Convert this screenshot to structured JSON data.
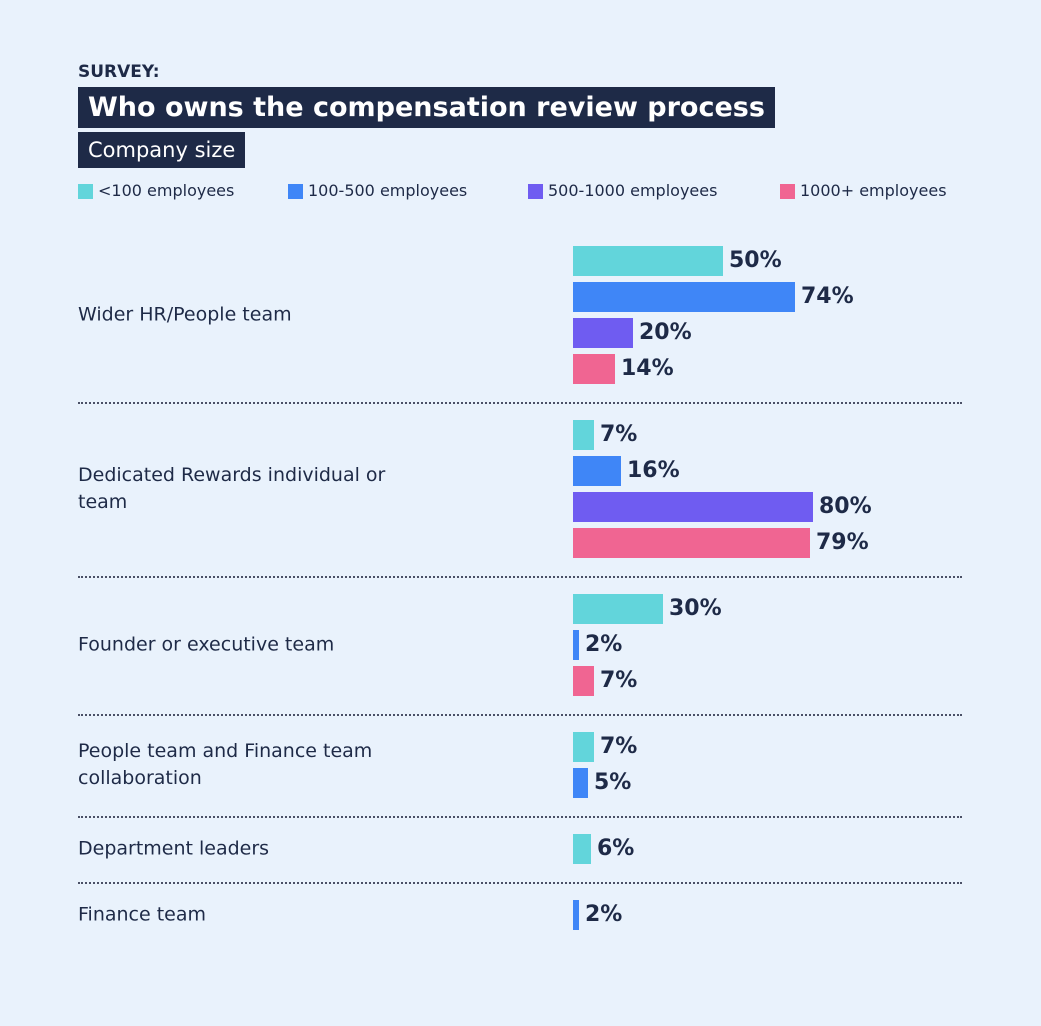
{
  "chart_data": {
    "type": "grouped-hbar",
    "kicker": "SURVEY:",
    "title": "Who owns the compensation review process",
    "subtitle": "Company size",
    "categories": [
      "Wider HR/People team",
      "Dedicated Rewards individual or team",
      "Founder or executive team",
      "People team and Finance team collaboration",
      "Department leaders",
      "Finance team"
    ],
    "series": [
      {
        "name": "<100 employees",
        "color": "#62d5db",
        "values": [
          50,
          7,
          30,
          7,
          6,
          null
        ],
        "value_labels": [
          "50%",
          "7%",
          "30%",
          "7%",
          "6%",
          null
        ]
      },
      {
        "name": "100-500 employees",
        "color": "#3f86f7",
        "values": [
          74,
          16,
          2,
          5,
          null,
          2
        ],
        "value_labels": [
          "74%",
          "16%",
          "2%",
          "5%",
          null,
          "2%"
        ]
      },
      {
        "name": "500-1000 employees",
        "color": "#6f5cf1",
        "values": [
          20,
          80,
          null,
          null,
          null,
          null
        ],
        "value_labels": [
          "20%",
          "80%",
          null,
          null,
          null,
          null
        ]
      },
      {
        "name": "1000+ employees",
        "color": "#f06592",
        "values": [
          14,
          79,
          7,
          null,
          null,
          null
        ],
        "value_labels": [
          "14%",
          "79%",
          "7%",
          null,
          null,
          null
        ]
      }
    ]
  }
}
